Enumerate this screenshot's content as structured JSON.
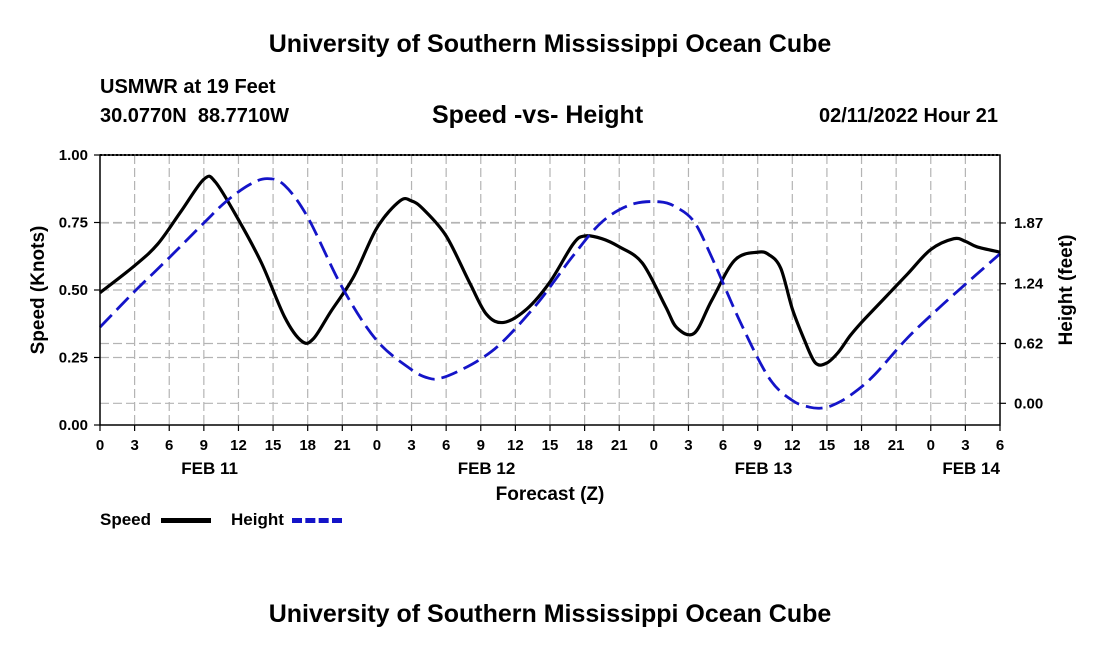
{
  "header": {
    "title": "University of Southern Mississippi Ocean Cube",
    "station": "USMWR at 19 Feet",
    "coords": "30.0770N  88.7710W",
    "subtitle": "Speed -vs- Height",
    "datetime": "02/11/2022 Hour 21"
  },
  "footer": {
    "title": "University of Southern Mississippi Ocean Cube"
  },
  "legend": {
    "speed_label": "Speed",
    "height_label": "Height"
  },
  "colors": {
    "speed": "#000000",
    "height": "#1414c8",
    "grid": "#b4b4b4"
  },
  "chart_data": {
    "type": "line",
    "xlabel": "Forecast (Z)",
    "ylabel": "Speed (Knots)",
    "y2label": "Height (feet)",
    "x_hours_range": [
      0,
      78
    ],
    "x_tick_labels": [
      "0",
      "3",
      "6",
      "9",
      "12",
      "15",
      "18",
      "21",
      "0",
      "3",
      "6",
      "9",
      "12",
      "15",
      "18",
      "21",
      "0",
      "3",
      "6",
      "9",
      "12",
      "15",
      "18",
      "21",
      "0",
      "3",
      "6"
    ],
    "x_date_labels": [
      {
        "label": "FEB 11",
        "hour": 9.5
      },
      {
        "label": "FEB 12",
        "hour": 33.5
      },
      {
        "label": "FEB 13",
        "hour": 57.5
      },
      {
        "label": "FEB 14",
        "hour": 75.5
      }
    ],
    "ylim": [
      0,
      1.0
    ],
    "y_ticks": [
      0,
      0.25,
      0.5,
      0.75,
      1.0
    ],
    "y_tick_labels": [
      "0.00",
      "0.25",
      "0.50",
      "0.75",
      "1.00"
    ],
    "y2lim": [
      -0.225,
      2.575
    ],
    "y2_ticks": [
      0,
      0.62,
      1.24,
      1.87
    ],
    "y2_tick_labels": [
      "0.00",
      "0.62",
      "1.24",
      "1.87"
    ],
    "series": [
      {
        "name": "Speed",
        "axis": "left",
        "x": [
          0,
          3,
          5,
          7,
          9,
          10,
          12,
          14,
          16,
          17.5,
          18.5,
          20,
          22,
          24,
          26,
          27,
          28,
          30,
          32,
          33.5,
          35,
          37,
          39,
          41,
          42,
          43.5,
          45,
          47,
          49,
          50,
          51.5,
          53,
          55,
          57,
          58,
          59,
          60,
          61,
          62,
          63,
          64,
          65,
          66,
          68,
          70,
          72,
          74,
          75,
          76,
          78
        ],
        "values": [
          0.49,
          0.59,
          0.67,
          0.79,
          0.91,
          0.9,
          0.76,
          0.6,
          0.4,
          0.31,
          0.32,
          0.42,
          0.55,
          0.73,
          0.83,
          0.83,
          0.8,
          0.7,
          0.53,
          0.41,
          0.38,
          0.43,
          0.53,
          0.67,
          0.7,
          0.69,
          0.66,
          0.6,
          0.44,
          0.36,
          0.34,
          0.46,
          0.61,
          0.64,
          0.63,
          0.58,
          0.43,
          0.32,
          0.23,
          0.23,
          0.27,
          0.33,
          0.38,
          0.47,
          0.56,
          0.65,
          0.69,
          0.68,
          0.66,
          0.64
        ]
      },
      {
        "name": "Height",
        "axis": "right",
        "x": [
          0,
          3,
          6,
          9,
          11,
          13,
          14.5,
          16,
          18,
          21,
          24,
          27,
          28.5,
          29.5,
          31,
          33,
          35,
          38,
          41,
          43.5,
          46,
          48.5,
          50,
          51.5,
          53,
          55.5,
          58,
          60,
          61.5,
          62.5,
          63.5,
          65,
          67,
          70,
          73,
          76,
          78
        ],
        "values": [
          0.79,
          1.16,
          1.51,
          1.87,
          2.1,
          2.27,
          2.33,
          2.26,
          1.93,
          1.2,
          0.65,
          0.35,
          0.26,
          0.26,
          0.33,
          0.46,
          0.65,
          1.05,
          1.53,
          1.88,
          2.06,
          2.09,
          2.03,
          1.88,
          1.52,
          0.84,
          0.26,
          0.03,
          -0.04,
          -0.05,
          -0.02,
          0.08,
          0.28,
          0.68,
          1.02,
          1.34,
          1.55
        ]
      }
    ]
  }
}
